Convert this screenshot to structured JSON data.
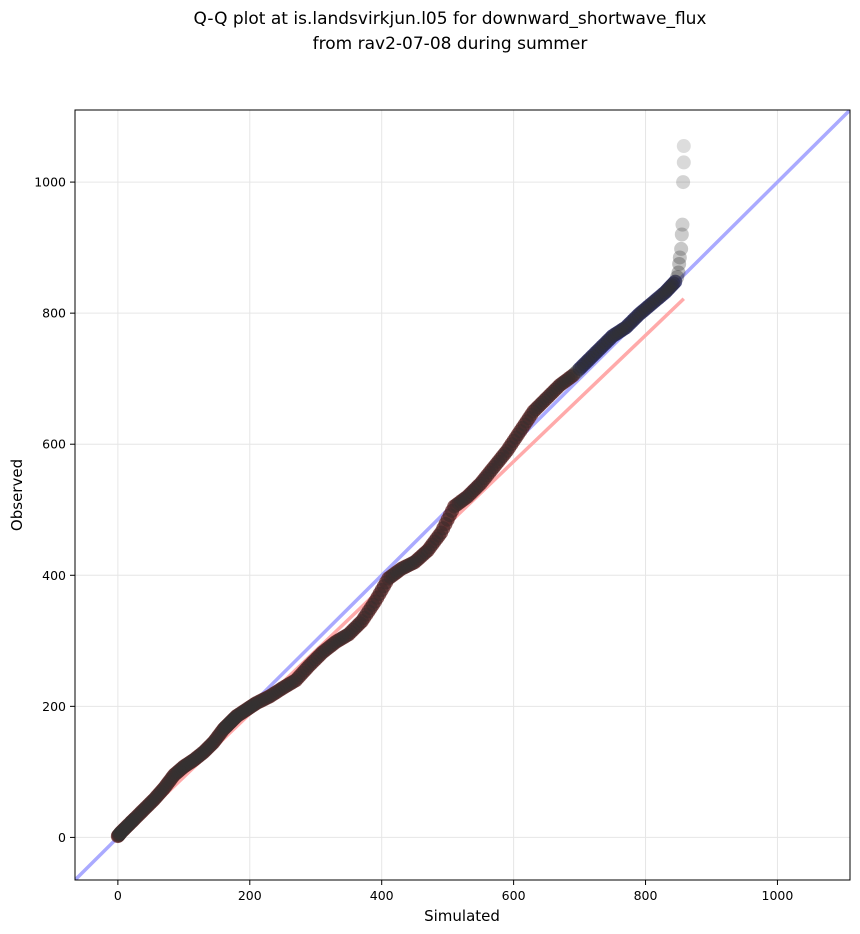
{
  "chart_data": {
    "type": "scatter",
    "title": "Q-Q plot at is.landsvirkjun.l05 for downward_shortwave_flux",
    "subtitle": "from rav2-07-08 during summer",
    "xlabel": "Simulated",
    "ylabel": "Observed",
    "xlim": [
      -65,
      1110
    ],
    "ylim": [
      -65,
      1110
    ],
    "xticks": [
      0,
      200,
      400,
      600,
      800,
      1000
    ],
    "yticks": [
      0,
      200,
      400,
      600,
      800,
      1000
    ],
    "grid": true,
    "colors": {
      "points": "#333333",
      "identity_line": "#aaaaff",
      "fit_line": "#ffaaaa",
      "lower_quantile_highlight": "#aa0000",
      "upper_quantile_highlight": "#0000aa",
      "grid": "#e6e6e6"
    },
    "identity_line": {
      "x": [
        -65,
        1110
      ],
      "y": [
        -65,
        1110
      ]
    },
    "fit_line": {
      "x": [
        0,
        858
      ],
      "y": [
        -4,
        822
      ]
    },
    "quantile_curve": {
      "x": [
        0,
        5,
        15,
        25,
        40,
        55,
        70,
        85,
        100,
        115,
        130,
        145,
        160,
        170,
        180,
        195,
        210,
        230,
        250,
        270,
        290,
        310,
        330,
        350,
        370,
        390,
        410,
        430,
        450,
        470,
        490,
        510,
        530,
        550,
        570,
        590,
        610,
        630,
        650,
        670,
        690,
        710,
        730,
        750,
        770,
        790,
        810,
        830,
        845
      ],
      "y": [
        2,
        8,
        18,
        28,
        43,
        58,
        75,
        95,
        108,
        118,
        130,
        145,
        165,
        175,
        185,
        195,
        205,
        215,
        228,
        240,
        262,
        282,
        298,
        310,
        330,
        360,
        395,
        410,
        420,
        438,
        465,
        505,
        520,
        540,
        565,
        590,
        620,
        650,
        670,
        690,
        705,
        725,
        745,
        765,
        778,
        798,
        815,
        832,
        848
      ]
    },
    "upper_tail": {
      "x": [
        848,
        850,
        851,
        852,
        854,
        855,
        856,
        857,
        858,
        858
      ],
      "y": [
        855,
        862,
        875,
        885,
        898,
        920,
        935,
        1000,
        1030,
        1055
      ]
    },
    "lower_highlight_range": [
      0,
      690
    ],
    "upper_highlight_range": [
      700,
      848
    ]
  }
}
